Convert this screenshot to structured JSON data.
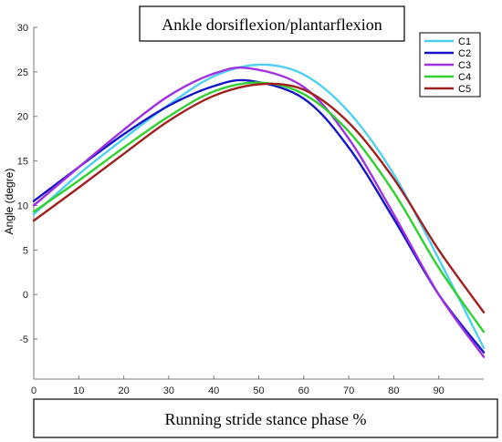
{
  "chart_data": {
    "type": "line",
    "title": "Ankle dorsiflexion/plantarflexion",
    "xlabel": "Running stride stance phase %",
    "ylabel": "Angle (degre)",
    "xlim": [
      0,
      100
    ],
    "ylim": [
      -9.5,
      30
    ],
    "xticks": [
      0,
      10,
      20,
      30,
      40,
      50,
      60,
      70,
      80,
      90
    ],
    "yticks": [
      -5,
      0,
      5,
      10,
      15,
      20,
      25,
      30
    ],
    "legend_position": "top-right",
    "grid": false,
    "series": [
      {
        "name": "C1",
        "color": "#4fd0f0",
        "points": [
          [
            0,
            9
          ],
          [
            10,
            13.5
          ],
          [
            20,
            17.5
          ],
          [
            30,
            21.3
          ],
          [
            40,
            24.5
          ],
          [
            50,
            25.8
          ],
          [
            60,
            24.7
          ],
          [
            70,
            20.5
          ],
          [
            80,
            13.5
          ],
          [
            90,
            4
          ],
          [
            100,
            -6
          ]
        ]
      },
      {
        "name": "C2",
        "color": "#1414c8",
        "points": [
          [
            0,
            10.5
          ],
          [
            10,
            14.3
          ],
          [
            20,
            18
          ],
          [
            30,
            21.2
          ],
          [
            40,
            23.4
          ],
          [
            48,
            24
          ],
          [
            60,
            22
          ],
          [
            70,
            16.5
          ],
          [
            80,
            8.5
          ],
          [
            90,
            0
          ],
          [
            100,
            -6.5
          ]
        ]
      },
      {
        "name": "C3",
        "color": "#a030e0",
        "points": [
          [
            0,
            10
          ],
          [
            10,
            14.3
          ],
          [
            20,
            18.5
          ],
          [
            30,
            22.3
          ],
          [
            40,
            24.8
          ],
          [
            48,
            25.4
          ],
          [
            60,
            23.3
          ],
          [
            70,
            17.5
          ],
          [
            80,
            9
          ],
          [
            90,
            0
          ],
          [
            100,
            -7
          ]
        ]
      },
      {
        "name": "C4",
        "color": "#30d030",
        "points": [
          [
            0,
            9.3
          ],
          [
            10,
            12.8
          ],
          [
            20,
            16.5
          ],
          [
            30,
            20
          ],
          [
            40,
            22.8
          ],
          [
            50,
            23.8
          ],
          [
            60,
            22.5
          ],
          [
            70,
            18.3
          ],
          [
            80,
            11.5
          ],
          [
            90,
            3
          ],
          [
            100,
            -4.2
          ]
        ]
      },
      {
        "name": "C5",
        "color": "#a02020",
        "points": [
          [
            0,
            8.3
          ],
          [
            10,
            12
          ],
          [
            20,
            15.8
          ],
          [
            30,
            19.5
          ],
          [
            40,
            22.3
          ],
          [
            50,
            23.6
          ],
          [
            60,
            23
          ],
          [
            70,
            19.3
          ],
          [
            80,
            13
          ],
          [
            90,
            5
          ],
          [
            100,
            -2
          ]
        ]
      }
    ]
  }
}
